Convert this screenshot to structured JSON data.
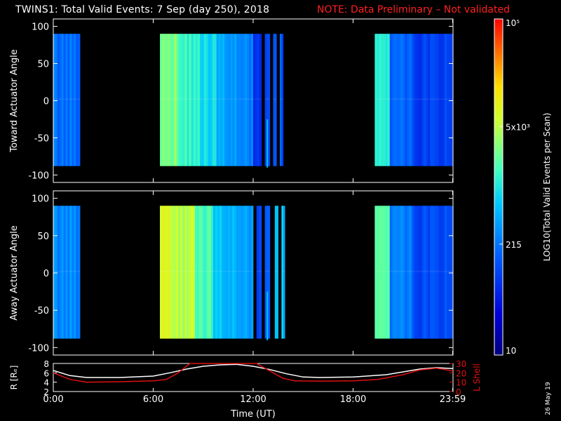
{
  "title": "TWINS1: Total Valid Events:  7 Sep (day 250), 2018",
  "note": "NOTE: Data Preliminary – Not validated",
  "colors": {
    "note": "#ff2020",
    "lshell": "#e01010",
    "radius": "#ffffff",
    "axis": "#ffffff"
  },
  "panels": [
    {
      "id": "toward",
      "ylabel": "Toward Actuator Angle",
      "yticks": [
        "100",
        "50",
        "0",
        "-50",
        "-100"
      ],
      "yrange": [
        -110,
        110
      ],
      "data_yrange": [
        -88,
        90
      ],
      "segments": [
        {
          "start": 0.0,
          "end": 1.6,
          "level": 0.32
        },
        {
          "start": 6.4,
          "end": 7.5,
          "level": 0.62
        },
        {
          "start": 7.5,
          "end": 8.8,
          "level": 0.54
        },
        {
          "start": 8.8,
          "end": 9.8,
          "level": 0.48
        },
        {
          "start": 9.8,
          "end": 11.0,
          "level": 0.4
        },
        {
          "start": 11.0,
          "end": 12.0,
          "level": 0.34
        },
        {
          "start": 12.0,
          "end": 12.5,
          "level": 0.22
        },
        {
          "start": 12.7,
          "end": 13.0,
          "level": 0.26
        },
        {
          "start": 13.2,
          "end": 13.4,
          "level": 0.28
        },
        {
          "start": 13.6,
          "end": 13.8,
          "level": 0.28
        },
        {
          "start": 19.3,
          "end": 20.2,
          "level": 0.5
        },
        {
          "start": 20.2,
          "end": 21.5,
          "level": 0.3
        },
        {
          "start": 21.5,
          "end": 24.0,
          "level": 0.24
        }
      ],
      "spike": {
        "time": 12.85,
        "from": -90,
        "to": -25
      }
    },
    {
      "id": "away",
      "ylabel": "Away Actuator Angle",
      "yticks": [
        "100",
        "50",
        "0",
        "-50",
        "-100"
      ],
      "yrange": [
        -110,
        110
      ],
      "data_yrange": [
        -88,
        90
      ],
      "segments": [
        {
          "start": 0.0,
          "end": 1.6,
          "level": 0.36
        },
        {
          "start": 6.4,
          "end": 7.0,
          "level": 0.74
        },
        {
          "start": 7.0,
          "end": 8.5,
          "level": 0.68
        },
        {
          "start": 8.5,
          "end": 9.6,
          "level": 0.56
        },
        {
          "start": 9.6,
          "end": 11.0,
          "level": 0.44
        },
        {
          "start": 11.0,
          "end": 12.0,
          "level": 0.38
        },
        {
          "start": 12.2,
          "end": 12.5,
          "level": 0.26
        },
        {
          "start": 12.7,
          "end": 13.0,
          "level": 0.3
        },
        {
          "start": 13.3,
          "end": 13.5,
          "level": 0.44
        },
        {
          "start": 13.7,
          "end": 13.9,
          "level": 0.44
        },
        {
          "start": 19.3,
          "end": 20.2,
          "level": 0.56
        },
        {
          "start": 20.2,
          "end": 21.5,
          "level": 0.34
        },
        {
          "start": 21.5,
          "end": 24.0,
          "level": 0.26
        }
      ],
      "spike": {
        "time": 12.85,
        "from": -90,
        "to": -25
      }
    }
  ],
  "colorbar": {
    "label": "LOG10(Total Valid Events per Scan)",
    "ticks": [
      {
        "label": "10",
        "frac": 0.0
      },
      {
        "label": "215",
        "frac": 0.33
      },
      {
        "label": "5x10³",
        "frac": 0.68
      },
      {
        "label": "10⁵",
        "frac": 1.0
      }
    ]
  },
  "bottom_panel": {
    "left_label": "R [Rₑ]",
    "right_label": "L Shell",
    "left_ticks": [
      "8",
      "6",
      "4",
      "2"
    ],
    "right_ticks": [
      "30",
      "20",
      "10",
      "0"
    ],
    "radius_curve": [
      [
        0,
        6.5
      ],
      [
        1,
        5.4
      ],
      [
        2,
        5.0
      ],
      [
        4,
        5.0
      ],
      [
        6,
        5.3
      ],
      [
        7,
        6.0
      ],
      [
        8,
        6.8
      ],
      [
        9,
        7.4
      ],
      [
        10,
        7.7
      ],
      [
        11,
        7.8
      ],
      [
        12,
        7.4
      ],
      [
        13,
        6.7
      ],
      [
        14,
        5.8
      ],
      [
        15,
        5.1
      ],
      [
        16,
        5.0
      ],
      [
        18,
        5.1
      ],
      [
        20,
        5.6
      ],
      [
        21,
        6.2
      ],
      [
        22,
        6.8
      ],
      [
        23,
        7.1
      ],
      [
        24,
        6.9
      ]
    ],
    "lshell_curve": [
      [
        0,
        20
      ],
      [
        1,
        13
      ],
      [
        2,
        10
      ],
      [
        4,
        10.5
      ],
      [
        6,
        11.5
      ],
      [
        6.8,
        13
      ],
      [
        7.5,
        20
      ],
      [
        8.2,
        30
      ],
      [
        12.2,
        30
      ],
      [
        13,
        22
      ],
      [
        13.8,
        14
      ],
      [
        14.5,
        11.5
      ],
      [
        16,
        11
      ],
      [
        18,
        11.5
      ],
      [
        19.5,
        13
      ],
      [
        21,
        18
      ],
      [
        22,
        23
      ],
      [
        23,
        25
      ],
      [
        24,
        22
      ]
    ]
  },
  "x_axis": {
    "label": "Time (UT)",
    "ticks": [
      {
        "label": "0:00",
        "value": 0
      },
      {
        "label": "6:00",
        "value": 6
      },
      {
        "label": "12:00",
        "value": 12
      },
      {
        "label": "18:00",
        "value": 18
      },
      {
        "label": "23:59",
        "value": 23.98
      }
    ],
    "range": [
      0,
      24
    ]
  },
  "date_stamp": "26 May 19",
  "chart_data": {
    "type": "heatmap",
    "title": "TWINS1: Total Valid Events:  7 Sep (day 250), 2018",
    "xlabel": "Time (UT)",
    "xlim": [
      0,
      24
    ],
    "panels": [
      "Toward Actuator Angle",
      "Away Actuator Angle"
    ],
    "ylim": [
      -110,
      110
    ],
    "colorbar": "LOG10(Total Valid Events per Scan)",
    "colorbar_ticks": [
      "10",
      "215",
      "5x10^3",
      "10^5"
    ],
    "line_series": [
      {
        "name": "R [Re]",
        "axis": "left",
        "range": [
          2,
          8
        ]
      },
      {
        "name": "L Shell",
        "axis": "right",
        "range": [
          0,
          30
        ]
      }
    ]
  }
}
